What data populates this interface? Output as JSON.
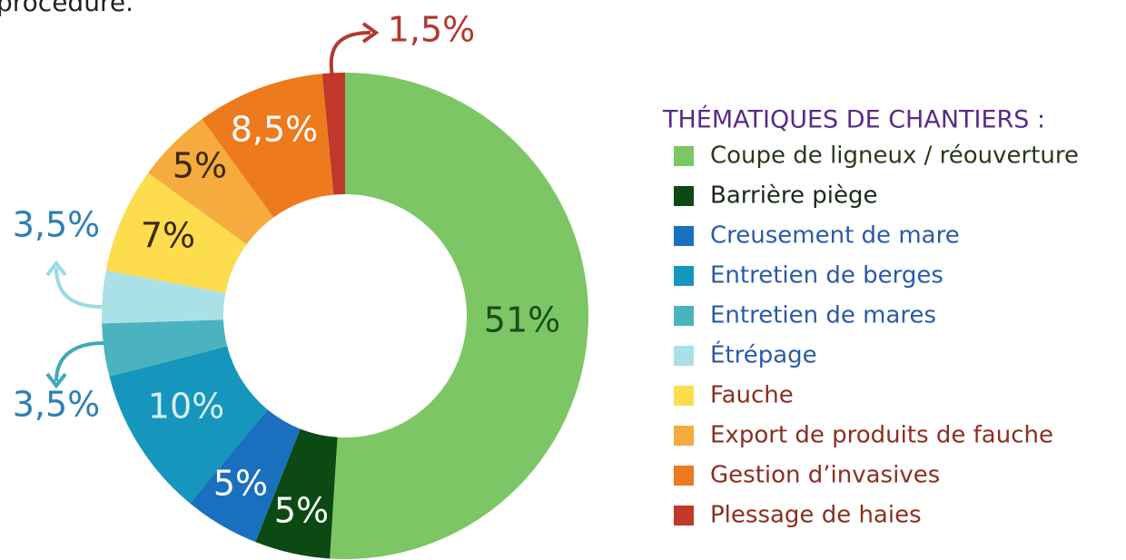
{
  "top_text": "procédure.",
  "chart_data": {
    "type": "donut",
    "legend_title": "THÉMATIQUES DE CHANTIERS :",
    "categories": [
      "Coupe de ligneux / réouverture",
      "Barrière piège",
      "Creusement de mare",
      "Entretien de berges",
      "Entretien de mares",
      "Étrépage",
      "Fauche",
      "Export de produits de fauche",
      "Gestion d’invasives",
      "Plessage de haies"
    ],
    "values": [
      51,
      5,
      5,
      10,
      3.5,
      3.5,
      7,
      5,
      8.5,
      1.5
    ],
    "value_labels": [
      "51%",
      "5%",
      "5%",
      "10%",
      "3,5%",
      "3,5%",
      "7%",
      "5%",
      "8,5%",
      "1,5%"
    ],
    "colors": [
      "#7dc665",
      "#0b4a12",
      "#1a6fbf",
      "#1696bd",
      "#4bb3bf",
      "#a9e1e7",
      "#fddc4e",
      "#f5ab3e",
      "#ee7a1e",
      "#c0392b"
    ]
  }
}
